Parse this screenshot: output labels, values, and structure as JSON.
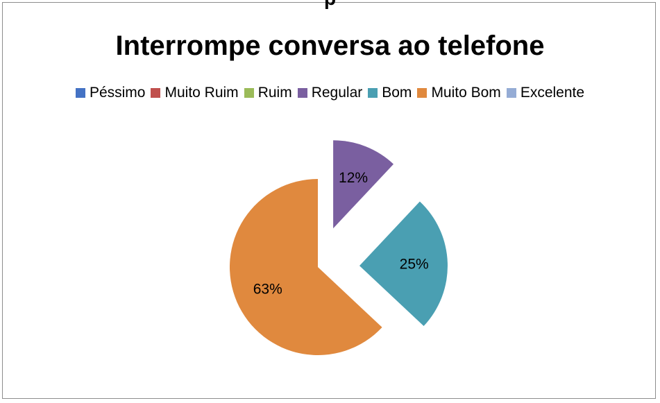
{
  "page": {
    "top_clipped_text": "p"
  },
  "chart_data": {
    "type": "pie",
    "title": "Interrompe conversa ao telefone",
    "legend_position": "top",
    "legend": [
      {
        "label": "Péssimo",
        "color": "#4472c4"
      },
      {
        "label": "Muito Ruim",
        "color": "#c0504d"
      },
      {
        "label": "Ruim",
        "color": "#9bbb59"
      },
      {
        "label": "Regular",
        "color": "#7a5fa0"
      },
      {
        "label": "Bom",
        "color": "#4a9fb2"
      },
      {
        "label": "Muito Bom",
        "color": "#e0893e"
      },
      {
        "label": "Excelente",
        "color": "#95acd5"
      }
    ],
    "slices": [
      {
        "label": "Péssimo",
        "value": 0,
        "text": ""
      },
      {
        "label": "Muito Ruim",
        "value": 0,
        "text": ""
      },
      {
        "label": "Ruim",
        "value": 0,
        "text": ""
      },
      {
        "label": "Regular",
        "value": 12,
        "text": "12%"
      },
      {
        "label": "Bom",
        "value": 25,
        "text": "25%"
      },
      {
        "label": "Muito Bom",
        "value": 63,
        "text": "63%"
      },
      {
        "label": "Excelente",
        "value": 0,
        "text": ""
      }
    ]
  }
}
